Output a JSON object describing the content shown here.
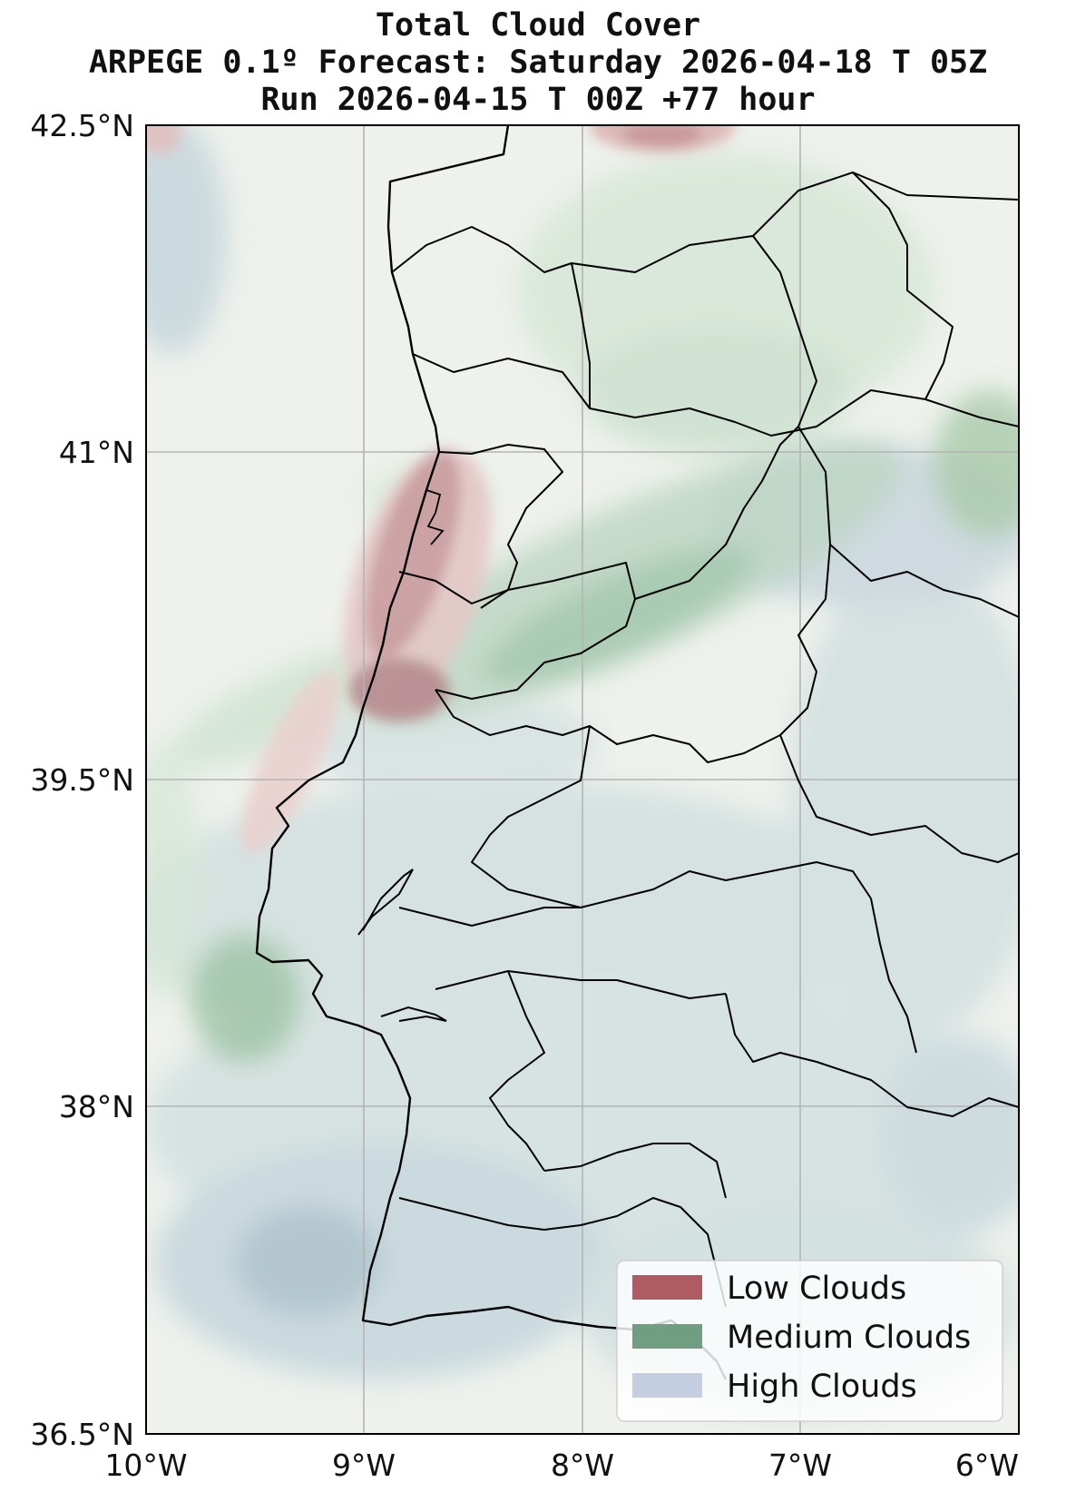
{
  "title": {
    "line1": "Total Cloud Cover",
    "line2": "ARPEGE 0.1º Forecast: Saturday 2026-04-18 T 05Z",
    "line3": "Run 2026-04-15 T 00Z +77 hour"
  },
  "axes": {
    "lon_labels": [
      "10°W",
      "9°W",
      "8°W",
      "7°W",
      "6°W"
    ],
    "lat_labels": [
      "42.5°N",
      "41°N",
      "39.5°N",
      "38°N",
      "36.5°N"
    ],
    "lon_range": [
      -10,
      -6
    ],
    "lat_range": [
      36.5,
      42.5
    ],
    "grid": true
  },
  "legend": {
    "placement": "bottom-right",
    "items": [
      {
        "label": "Low Clouds",
        "color": "#b05a62"
      },
      {
        "label": "Medium Clouds",
        "color": "#6f9e80"
      },
      {
        "label": "High Clouds",
        "color": "#c3cfe0"
      }
    ]
  },
  "colors": {
    "background_field": "#eef1ec",
    "low": "#c77f84",
    "medium": "#79ad8b",
    "high": "#9fb8c6",
    "border": "#000000",
    "grid": "#b4b4b4"
  }
}
